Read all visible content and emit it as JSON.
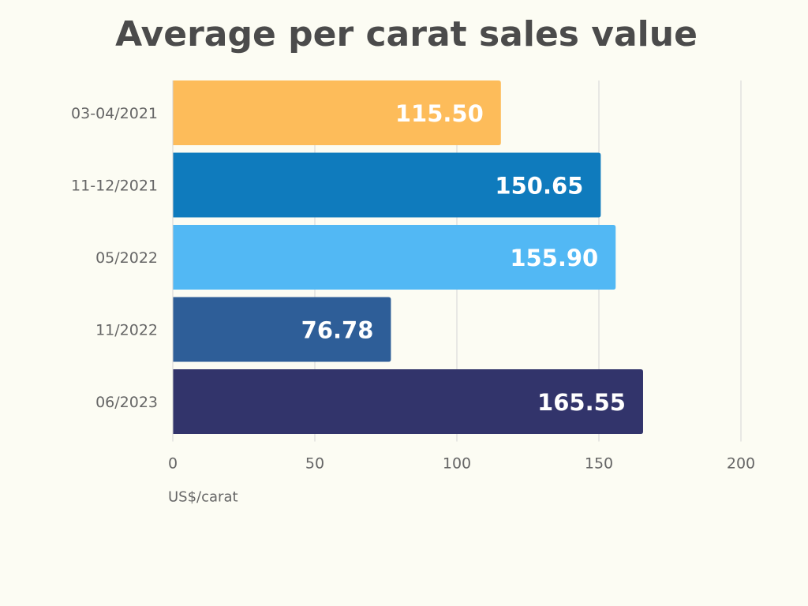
{
  "chart_data": {
    "type": "bar",
    "orientation": "horizontal",
    "title": "Average per carat sales value",
    "xlabel": "US$/carat",
    "ylabel": "",
    "categories": [
      "03-04/2021",
      "11-12/2021",
      "05/2022",
      "11/2022",
      "06/2023"
    ],
    "values": [
      115.5,
      150.65,
      155.9,
      76.78,
      165.55
    ],
    "value_labels": [
      "115.50",
      "150.65",
      "155.90",
      "76.78",
      "165.55"
    ],
    "bar_colors": [
      "#fdbc5a",
      "#0f7bbd",
      "#52b8f4",
      "#2e5e98",
      "#32346b"
    ],
    "xlim": [
      0,
      200
    ],
    "xticks": [
      0,
      50,
      100,
      150,
      200
    ],
    "xtick_labels": [
      "0",
      "50",
      "100",
      "150",
      "200"
    ],
    "grid": true,
    "legend": "none"
  }
}
